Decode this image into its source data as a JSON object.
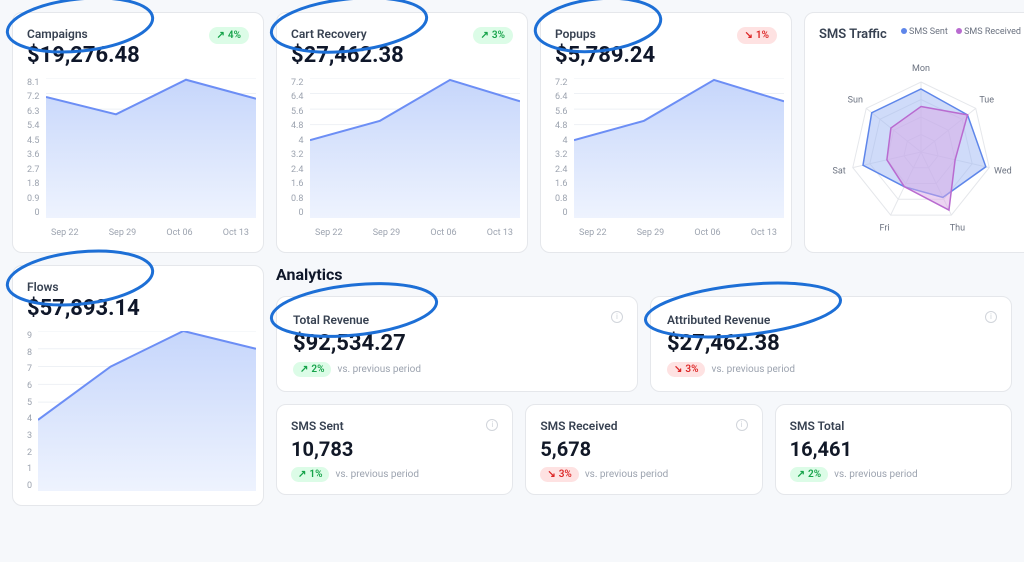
{
  "colors": {
    "chart_line": "#6c8ef5",
    "chart_fill_top": "#c6d6fb",
    "chart_fill_bottom": "#eef3fe",
    "grid": "#eef1f5",
    "radar_sent_fill": "#9fb8f4",
    "radar_sent_stroke": "#5e86ea",
    "radar_recv_fill": "#d9a8e6",
    "radar_recv_stroke": "#b96bd0",
    "highlight": "#1d6fd6"
  },
  "top_cards": [
    {
      "title": "Campaigns",
      "value": "$19,276.48",
      "change": "4%",
      "direction": "up",
      "y_ticks": [
        "8.1",
        "7.2",
        "6.3",
        "5.4",
        "4.5",
        "3.6",
        "2.7",
        "1.8",
        "0.9",
        "0"
      ],
      "x_ticks": [
        "Sep 22",
        "Sep 29",
        "Oct 06",
        "Oct 13"
      ],
      "points": [
        7.0,
        6.0,
        8.0,
        6.9
      ],
      "y_max": 8.1
    },
    {
      "title": "Cart Recovery",
      "value": "$27,462.38",
      "change": "3%",
      "direction": "up",
      "y_ticks": [
        "7.2",
        "6.4",
        "5.6",
        "4.8",
        "4",
        "3.2",
        "2.4",
        "1.6",
        "0.8",
        "0"
      ],
      "x_ticks": [
        "Sep 22",
        "Sep 29",
        "Oct 06",
        "Oct 13"
      ],
      "points": [
        4.0,
        5.0,
        7.1,
        6.0
      ],
      "y_max": 7.2
    },
    {
      "title": "Popups",
      "value": "$5,789.24",
      "change": "1%",
      "direction": "down",
      "y_ticks": [
        "7.2",
        "6.4",
        "5.6",
        "4.8",
        "4",
        "3.2",
        "2.4",
        "1.6",
        "0.8",
        "0"
      ],
      "x_ticks": [
        "Sep 22",
        "Sep 29",
        "Oct 06",
        "Oct 13"
      ],
      "points": [
        4.0,
        5.0,
        7.1,
        6.0
      ],
      "y_max": 7.2
    }
  ],
  "sms_traffic": {
    "title": "SMS Traffic",
    "legend_sent": "SMS Sent",
    "legend_recv": "SMS Received",
    "days": [
      "Mon",
      "Tue",
      "Wed",
      "Thu",
      "Fri",
      "Sat",
      "Sun"
    ],
    "sent": [
      0.9,
      0.85,
      0.95,
      0.72,
      0.55,
      0.85,
      0.9
    ],
    "received": [
      0.65,
      0.85,
      0.5,
      0.92,
      0.55,
      0.5,
      0.55
    ]
  },
  "flows_card": {
    "title": "Flows",
    "value": "$57,893.14",
    "y_ticks": [
      "9",
      "8",
      "7",
      "6",
      "5",
      "4",
      "3",
      "2",
      "1",
      "0"
    ],
    "points": [
      4.0,
      7.0,
      9.0,
      8.0
    ],
    "y_max": 9
  },
  "analytics": {
    "heading": "Analytics",
    "vs_label": "vs. previous period",
    "total_revenue": {
      "title": "Total Revenue",
      "value": "$92,534.27",
      "change": "2%",
      "direction": "up"
    },
    "attributed_revenue": {
      "title": "Attributed Revenue",
      "value": "$27,462.38",
      "change": "3%",
      "direction": "down"
    },
    "sms_sent": {
      "title": "SMS Sent",
      "value": "10,783",
      "change": "1%",
      "direction": "up"
    },
    "sms_received": {
      "title": "SMS Received",
      "value": "5,678",
      "change": "3%",
      "direction": "down"
    },
    "sms_total": {
      "title": "SMS Total",
      "value": "16,461",
      "change": "2%",
      "direction": "up"
    }
  }
}
